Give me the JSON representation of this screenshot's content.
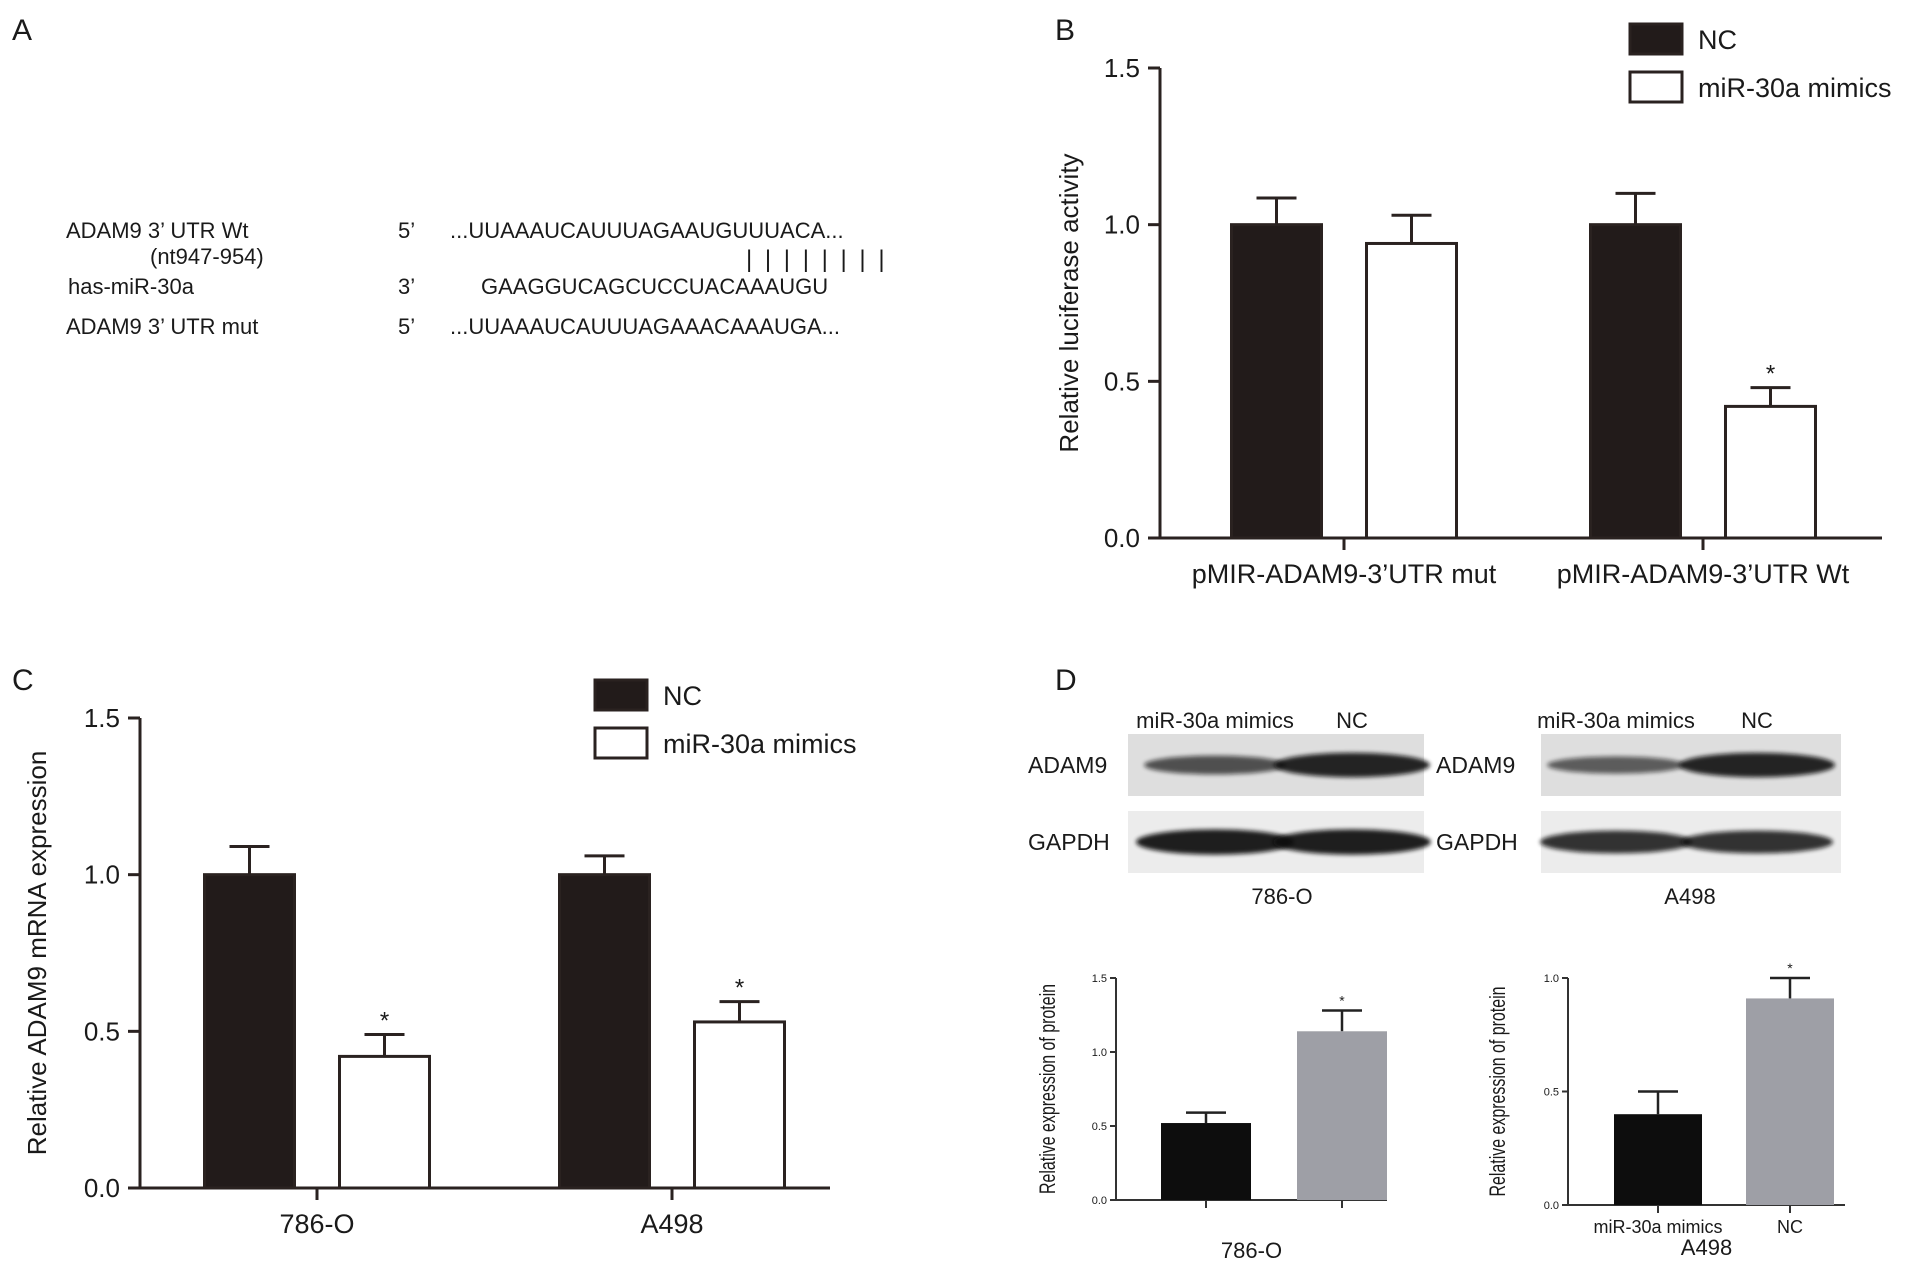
{
  "panel_letters": {
    "a": "A",
    "b": "B",
    "c": "C",
    "d": "D"
  },
  "colors": {
    "dark_bar": "#221b1a",
    "white_bar": "#ffffff",
    "gray_bar": "#9e9fa6",
    "black_bar": "#0d0d0d",
    "axis": "#2a2220"
  },
  "panel_a": {
    "rows": [
      {
        "name": "ADAM9 3’ UTR Wt",
        "prime": "5’",
        "seq": "...UUAAAUCAUUUAGAAUGUUUACA..."
      },
      {
        "name": "(nt947-954)",
        "prime": "",
        "seq": "| | | | | | | |"
      },
      {
        "name": "has-miR-30a",
        "prime": "3’",
        "seq": "GAAGGUCAGCUCCUACAAAUGU"
      },
      {
        "name": "ADAM9 3’ UTR mut",
        "prime": "5’",
        "seq": "...UUAAAUCAUUUAGAAACAAAUGA..."
      }
    ]
  },
  "chart_data": [
    {
      "panel": "B",
      "type": "bar",
      "categories": [
        "pMIR-ADAM9-3’UTR mut",
        "pMIR-ADAM9-3’UTR Wt"
      ],
      "series": [
        {
          "name": "NC",
          "values": [
            1.0,
            1.0
          ],
          "errors": [
            0.085,
            0.1
          ],
          "color": "#221b1a"
        },
        {
          "name": "miR-30a mimics",
          "values": [
            0.94,
            0.42
          ],
          "errors": [
            0.09,
            0.06
          ],
          "color": "#ffffff"
        }
      ],
      "significance": [
        "",
        "*"
      ],
      "ylabel": "Relative luciferase activity",
      "ylim": [
        0,
        1.5
      ],
      "yticks": [
        "0.0",
        "0.5",
        "1.0",
        "1.5"
      ]
    },
    {
      "panel": "C",
      "type": "bar",
      "categories": [
        "786-O",
        "A498"
      ],
      "series": [
        {
          "name": "NC",
          "values": [
            1.0,
            1.0
          ],
          "errors": [
            0.09,
            0.06
          ],
          "color": "#221b1a"
        },
        {
          "name": "miR-30a mimics",
          "values": [
            0.42,
            0.53
          ],
          "errors": [
            0.07,
            0.065
          ],
          "color": "#ffffff"
        }
      ],
      "significance": [
        "*",
        "*"
      ],
      "ylabel": "Relative ADAM9 mRNA expression",
      "ylim": [
        0,
        1.5
      ],
      "yticks": [
        "0.0",
        "0.5",
        "1.0",
        "1.5"
      ]
    },
    {
      "panel": "D-786-O",
      "type": "bar",
      "categories": [
        "",
        ""
      ],
      "values": [
        0.52,
        1.14
      ],
      "errors": [
        0.07,
        0.14
      ],
      "colors": [
        "#0d0d0d",
        "#9e9fa6"
      ],
      "significance": [
        "",
        "*"
      ],
      "xlabel": "786-O",
      "ylabel": "Relative expression of protein",
      "ylim": [
        0,
        1.5
      ],
      "yticks": [
        "0.0",
        "0.5",
        "1.0",
        "1.5"
      ]
    },
    {
      "panel": "D-A498",
      "type": "bar",
      "categories": [
        "miR-30a mimics",
        "NC"
      ],
      "values": [
        0.4,
        0.91
      ],
      "errors": [
        0.1,
        0.09
      ],
      "colors": [
        "#0d0d0d",
        "#9e9fa6"
      ],
      "significance": [
        "",
        "*"
      ],
      "xlabel": "A498",
      "ylabel": "Relative expression of protein",
      "ylim": [
        0,
        1.0
      ],
      "yticks": [
        "0.0",
        "0.5",
        "1.0"
      ]
    }
  ],
  "western_blot": {
    "blots": [
      {
        "cell_line": "786-O",
        "lane_labels": [
          "miR-30a mimics",
          "NC"
        ],
        "row_labels": [
          "ADAM9",
          "GAPDH"
        ],
        "band_strength": {
          "ADAM9": [
            0.55,
            0.9
          ],
          "GAPDH": [
            0.95,
            0.95
          ]
        }
      },
      {
        "cell_line": "A498",
        "lane_labels": [
          "miR-30a mimics",
          "NC"
        ],
        "row_labels": [
          "ADAM9",
          "GAPDH"
        ],
        "band_strength": {
          "ADAM9": [
            0.45,
            0.9
          ],
          "GAPDH": [
            0.8,
            0.8
          ]
        }
      }
    ]
  }
}
